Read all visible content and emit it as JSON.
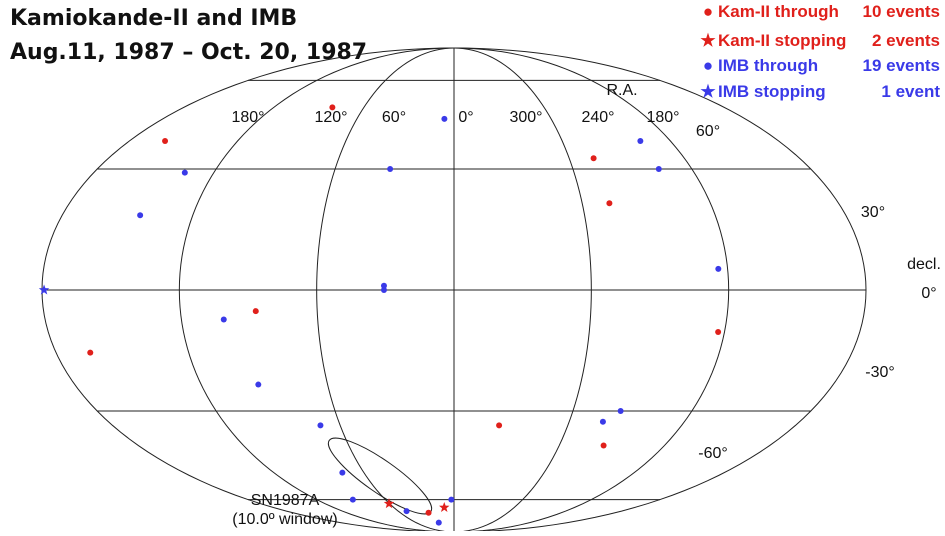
{
  "title_line1": "Kamiokande-II and IMB",
  "title_line2": "Aug.11, 1987 – Oct. 20, 1987",
  "colors": {
    "red": "#e0201b",
    "blue": "#3a3ae8"
  },
  "legend": [
    {
      "symbol": "●",
      "label": "Kam-II through",
      "count": "10 events",
      "color": "red"
    },
    {
      "symbol": "★",
      "label": "Kam-II stopping",
      "count": "2 events",
      "color": "red"
    },
    {
      "symbol": "●",
      "label": "IMB through",
      "count": "19 events",
      "color": "blue"
    },
    {
      "symbol": "★",
      "label": "IMB stopping",
      "count": "1 event",
      "color": "blue"
    }
  ],
  "chart_data": {
    "type": "scatter",
    "projection": "sinusoidal (all-sky, galactic-style layout)",
    "ra_axis_label": "R.A.",
    "dec_axis_label": "decl.",
    "ra_ticks": [
      {
        "ra": 180,
        "label": "180°"
      },
      {
        "ra": 120,
        "label": "120°"
      },
      {
        "ra": 60,
        "label": "60°"
      },
      {
        "ra": 0,
        "label": "0°"
      },
      {
        "ra": 300,
        "label": "300°"
      },
      {
        "ra": 240,
        "label": "240°"
      },
      {
        "ra": 180,
        "label": "180°"
      }
    ],
    "dec_ticks": [
      {
        "dec": 60,
        "label": "60°"
      },
      {
        "dec": 30,
        "label": "30°"
      },
      {
        "dec": 0,
        "label": "0°"
      },
      {
        "dec": -30,
        "label": "-30°"
      },
      {
        "dec": -60,
        "label": "-60°"
      }
    ],
    "annotation": {
      "line1": "SN1987A",
      "line2": "(10.0º window)",
      "ra": 83.9,
      "dec": -69.3,
      "window_deg": 10.0
    },
    "series": [
      {
        "name": "Kam-II through",
        "color": "red",
        "marker": "dot",
        "points": [
          {
            "u": -0.89,
            "dec": 38
          },
          {
            "u": -0.45,
            "dec": 49
          },
          {
            "u": -0.914,
            "dec": -15
          },
          {
            "u": -0.483,
            "dec": -5
          },
          {
            "u": 0.404,
            "dec": 21
          },
          {
            "u": 0.404,
            "dec": 33
          },
          {
            "u": 0.651,
            "dec": -10
          },
          {
            "u": 0.132,
            "dec": -34
          },
          {
            "u": 0.474,
            "dec": -40
          },
          {
            "u": -0.158,
            "dec": -67
          }
        ]
      },
      {
        "name": "Kam-II stopping",
        "color": "red",
        "marker": "star",
        "points": [
          {
            "u": -0.336,
            "dec": -62
          },
          {
            "u": -0.054,
            "dec": -64
          }
        ]
      },
      {
        "name": "IMB through",
        "color": "blue",
        "marker": "dot",
        "points": [
          {
            "u": -0.033,
            "dec": 45
          },
          {
            "u": -0.179,
            "dec": 30
          },
          {
            "u": -0.747,
            "dec": 29
          },
          {
            "u": -0.801,
            "dec": 18
          },
          {
            "u": -0.17,
            "dec": 1
          },
          {
            "u": -0.17,
            "dec": 0
          },
          {
            "u": -0.563,
            "dec": -7
          },
          {
            "u": -0.516,
            "dec": -23
          },
          {
            "u": -0.391,
            "dec": -34
          },
          {
            "u": -0.413,
            "dec": -49
          },
          {
            "u": -0.491,
            "dec": -60
          },
          {
            "u": -0.283,
            "dec": -66
          },
          {
            "u": -0.134,
            "dec": -74
          },
          {
            "u": -0.013,
            "dec": -60
          },
          {
            "u": 0.574,
            "dec": 38
          },
          {
            "u": 0.574,
            "dec": 30
          },
          {
            "u": 0.644,
            "dec": 5
          },
          {
            "u": 0.431,
            "dec": -33
          },
          {
            "u": 0.467,
            "dec": -30
          }
        ]
      },
      {
        "name": "IMB stopping",
        "color": "blue",
        "marker": "star",
        "points": [
          {
            "u": -0.995,
            "dec": 0
          }
        ]
      }
    ]
  }
}
